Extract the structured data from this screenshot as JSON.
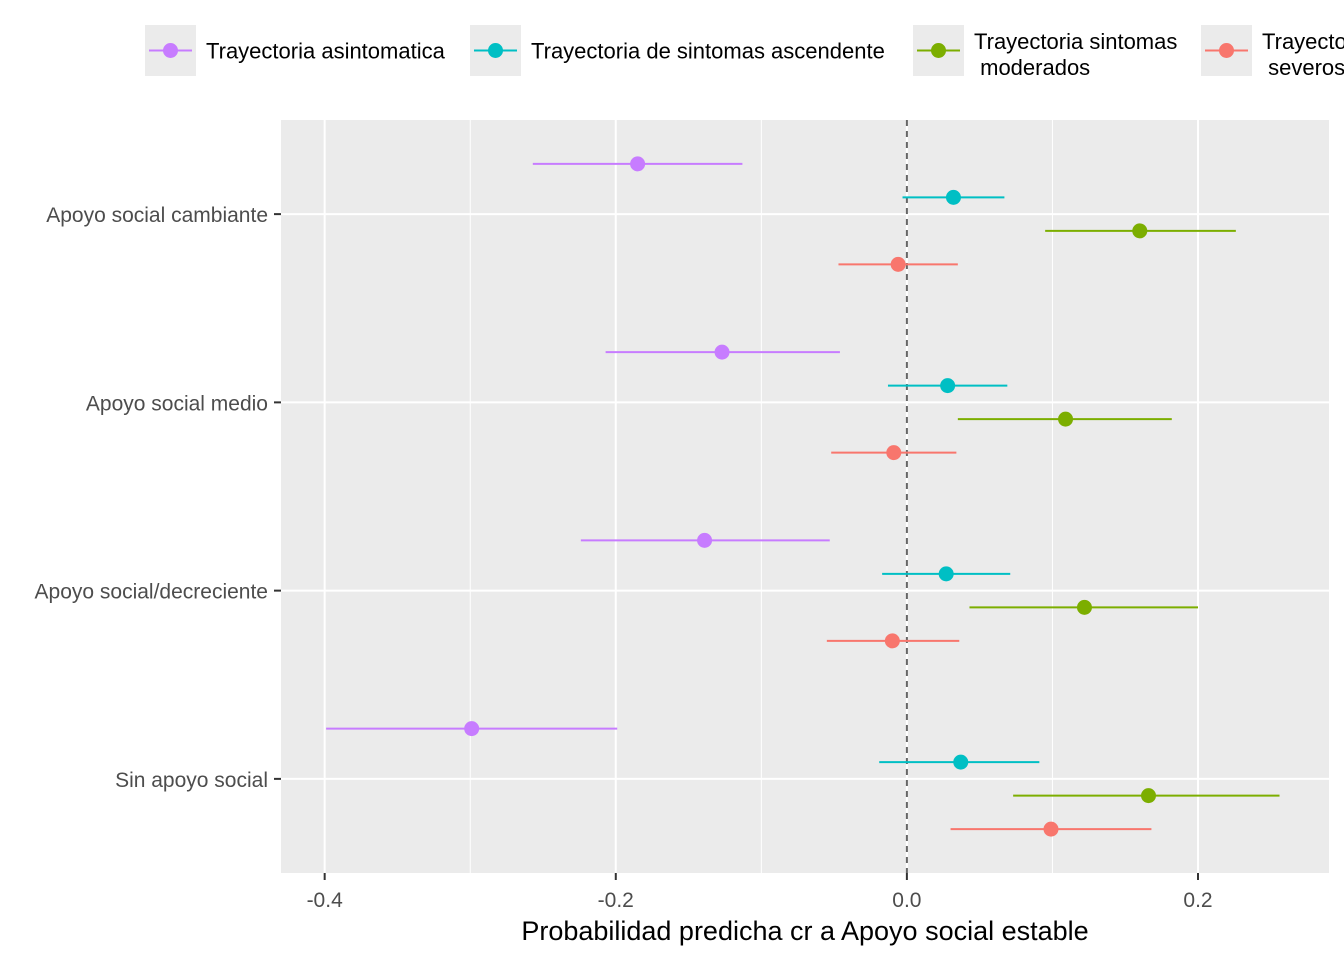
{
  "chart_data": {
    "type": "dot-whisker",
    "title": "",
    "xlabel": "Probabilidad predicha cr a Apoyo social estable",
    "ylabel": "",
    "xlim": [
      -0.43,
      0.29
    ],
    "xticks": [
      -0.4,
      -0.2,
      0.0,
      0.2
    ],
    "xtick_labels": [
      "-0.4",
      "-0.2",
      "0.0",
      "0.2"
    ],
    "reference_line": 0,
    "categories": [
      "Apoyo social cambiante",
      "Apoyo social medio",
      "Apoyo social/decreciente",
      "Sin apoyo social"
    ],
    "legend_position": "top",
    "grid": true,
    "series": [
      {
        "name": "Trayectoria asintomatica",
        "legend_lines": [
          "Trayectoria asintomatica"
        ],
        "color": "#C77CFF",
        "estimates": [
          -0.185,
          -0.127,
          -0.139,
          -0.299
        ],
        "lower": [
          -0.257,
          -0.207,
          -0.224,
          -0.399
        ],
        "upper": [
          -0.113,
          -0.046,
          -0.053,
          -0.199
        ]
      },
      {
        "name": "Trayectoria de sintomas ascendente",
        "legend_lines": [
          "Trayectoria de sintomas ascendente"
        ],
        "color": "#00BFC4",
        "estimates": [
          0.032,
          0.028,
          0.027,
          0.037
        ],
        "lower": [
          -0.003,
          -0.013,
          -0.017,
          -0.019
        ],
        "upper": [
          0.067,
          0.069,
          0.071,
          0.091
        ]
      },
      {
        "name": "Trayectoria sintomas moderados",
        "legend_lines": [
          "Trayectoria sintomas",
          " moderados"
        ],
        "color": "#7CAE00",
        "estimates": [
          0.16,
          0.109,
          0.122,
          0.166
        ],
        "lower": [
          0.095,
          0.035,
          0.043,
          0.073
        ],
        "upper": [
          0.226,
          0.182,
          0.2,
          0.256
        ]
      },
      {
        "name": "Trayectoria sintomas severos",
        "legend_lines": [
          "Trayectoria sintomas",
          " severos"
        ],
        "color": "#F8766D",
        "estimates": [
          -0.006,
          -0.009,
          -0.01,
          0.099
        ],
        "lower": [
          -0.047,
          -0.052,
          -0.055,
          0.03
        ],
        "upper": [
          0.035,
          0.034,
          0.036,
          0.168
        ]
      }
    ]
  }
}
